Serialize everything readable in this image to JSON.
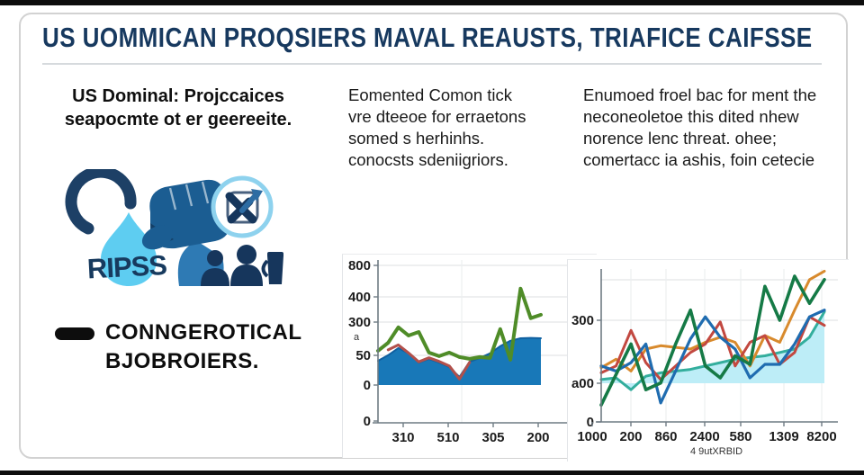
{
  "header": {
    "title": "US UOMMICAN PROQSIERS MAVAL REAUSTS, TRIAFICE CAIFSSE"
  },
  "columns": {
    "col1": "US Dominal: Projccaices\nseapocmte ot er geereeite.",
    "col2": "Eomented Comon tick\nvre dteeoe for erraetons\nsomed s herhinhs.\nconocsts sdeniigriors.",
    "col3": "Enumoed froel bac for ment the\nneconeoletoe this dited nhew\nnorence lenc threat. ohee;\ncomertacc ia ashis, foin cetecie"
  },
  "illustration": {
    "drop_label": "RIPSS"
  },
  "bullet": {
    "label": "CONNGEROTICAL\nBJOBROIERS."
  },
  "palette": {
    "title_navy": "#17395f",
    "body_text": "#1a1a1a",
    "icon_dark_navy": "#16365c",
    "icon_mid_blue": "#1b5d92",
    "icon_light_blue": "#5ecdf1",
    "card_border": "#d2d2d2",
    "frame_bar": "#0d0d0d"
  },
  "chart_data": [
    {
      "type": "line",
      "position": "left",
      "title": "",
      "xlabel": "",
      "ylabel": "",
      "ylim": [
        0,
        800
      ],
      "grid": true,
      "legend": "none",
      "yticklabels": [
        "800",
        "400",
        "300",
        "50",
        "0",
        "0"
      ],
      "xticklabels": [
        "310",
        "510",
        "305",
        "200"
      ],
      "y_axis_mark": "a",
      "series": [
        {
          "name": "blue-area",
          "kind": "area",
          "color": "#1060a0",
          "fill": "#1878b8",
          "values": [
            162,
            200,
            247,
            212,
            150,
            175,
            150,
            120,
            54,
            156,
            181,
            212,
            260,
            296,
            313,
            315,
            313
          ]
        },
        {
          "name": "red-line",
          "kind": "line",
          "color": "#b2504b",
          "values": [
            null,
            235,
            268,
            215,
            155,
            182,
            158,
            128,
            40,
            152,
            null,
            null,
            null,
            null,
            null,
            null,
            null
          ]
        },
        {
          "name": "green-line",
          "kind": "line",
          "color": "#4f8c28",
          "values": [
            229,
            283,
            386,
            331,
            355,
            217,
            193,
            217,
            187,
            175,
            187,
            181,
            374,
            169,
            645,
            447,
            470
          ]
        }
      ]
    },
    {
      "type": "line",
      "position": "right",
      "title": "",
      "xlabel": "4 9utXRBID",
      "ylabel": "",
      "ylim": [
        0,
        450
      ],
      "grid": true,
      "legend": "none",
      "yticklabels": [
        "300",
        "a00",
        "0"
      ],
      "xticklabels": [
        "1000",
        "200",
        "860",
        "2400",
        "580",
        "1309",
        "8200"
      ],
      "series": [
        {
          "name": "cyan-area",
          "kind": "area",
          "color": "#33ae9d",
          "fill": "#bdedf7",
          "values": [
            125,
            130,
            95,
            135,
            145,
            150,
            155,
            165,
            175,
            185,
            190,
            195,
            205,
            215,
            250,
            325
          ]
        },
        {
          "name": "orange-line",
          "kind": "line",
          "color": "#d88a2d",
          "values": [
            160,
            185,
            150,
            215,
            225,
            220,
            215,
            235,
            250,
            235,
            165,
            255,
            235,
            330,
            420,
            445
          ]
        },
        {
          "name": "red-line",
          "kind": "line",
          "color": "#c24840",
          "values": [
            145,
            165,
            270,
            175,
            125,
            165,
            205,
            230,
            295,
            165,
            235,
            255,
            170,
            205,
            310,
            285
          ]
        },
        {
          "name": "blue-line",
          "kind": "line",
          "color": "#1f6cb0",
          "values": [
            165,
            150,
            175,
            230,
            56,
            150,
            245,
            310,
            250,
            215,
            130,
            170,
            170,
            230,
            310,
            330
          ]
        },
        {
          "name": "dark-green-line",
          "kind": "line",
          "color": "#157a46",
          "values": [
            50,
            140,
            230,
            95,
            115,
            230,
            330,
            165,
            130,
            195,
            170,
            400,
            300,
            430,
            350,
            420
          ]
        }
      ]
    }
  ]
}
